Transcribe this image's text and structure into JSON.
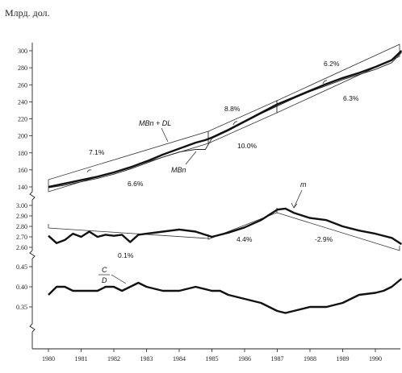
{
  "chart_data": [
    {
      "type": "line",
      "ylabel": "Млрд. дол.",
      "ylim": [
        130,
        310
      ],
      "yticks": [
        140,
        160,
        180,
        200,
        220,
        240,
        260,
        280,
        300
      ],
      "xlim": [
        1980,
        1990.8
      ],
      "series": [
        {
          "name": "MBn + DL",
          "x": [
            1980,
            1980.5,
            1981,
            1981.5,
            1982,
            1982.5,
            1983,
            1983.5,
            1984,
            1984.5,
            1984.8,
            1985,
            1985.5,
            1986,
            1986.5,
            1987,
            1987.5,
            1988,
            1988.5,
            1989,
            1989.5,
            1990,
            1990.5,
            1990.8
          ],
          "values": [
            140,
            144,
            148,
            152,
            157,
            163,
            170,
            178,
            185,
            192,
            195,
            198,
            207,
            217,
            227,
            237,
            245,
            253,
            261,
            268,
            274,
            281,
            289,
            300
          ]
        },
        {
          "name": "MBn",
          "x": [
            1980,
            1980.5,
            1981,
            1981.5,
            1982,
            1982.5,
            1983,
            1983.5,
            1984,
            1984.5,
            1984.8,
            1985,
            1985.5,
            1986,
            1986.5,
            1987,
            1987.5,
            1988,
            1988.5,
            1989,
            1989.5,
            1990,
            1990.5,
            1990.8
          ],
          "values": [
            139,
            142,
            146,
            150,
            155,
            161,
            168,
            175,
            181,
            184,
            184,
            197,
            206,
            216,
            226,
            235,
            244,
            252,
            259,
            266,
            272,
            278,
            286,
            298
          ]
        }
      ],
      "annotations": [
        "7.1%",
        "6.6%",
        "8.8%",
        "10.0%",
        "6.2%",
        "6.3%"
      ]
    },
    {
      "type": "line",
      "ylim": [
        2.58,
        3.05
      ],
      "yticks": [
        2.6,
        2.7,
        2.8,
        2.9,
        3.0
      ],
      "ytick_labels": [
        "2.60",
        "2.70",
        "2.80",
        "2.90",
        "3.00"
      ],
      "series": [
        {
          "name": "m",
          "x": [
            1980,
            1980.25,
            1980.5,
            1980.75,
            1981,
            1981.25,
            1981.5,
            1981.75,
            1982,
            1982.25,
            1982.5,
            1982.75,
            1983,
            1983.5,
            1984,
            1984.5,
            1985,
            1985.5,
            1986,
            1986.5,
            1987,
            1987.25,
            1987.5,
            1988,
            1988.5,
            1989,
            1989.5,
            1990,
            1990.5,
            1990.8
          ],
          "values": [
            2.71,
            2.64,
            2.67,
            2.73,
            2.7,
            2.75,
            2.7,
            2.72,
            2.71,
            2.72,
            2.65,
            2.72,
            2.73,
            2.75,
            2.77,
            2.75,
            2.7,
            2.74,
            2.79,
            2.86,
            2.96,
            2.97,
            2.93,
            2.88,
            2.86,
            2.8,
            2.76,
            2.73,
            2.69,
            2.63
          ]
        }
      ],
      "annotations": [
        "0.1%",
        "4.4%",
        "-2.9%"
      ]
    },
    {
      "type": "line",
      "ylim": [
        0.3,
        0.46
      ],
      "yticks": [
        0.35,
        0.4,
        0.45
      ],
      "ytick_labels": [
        "0.35",
        "0.40",
        "0.45"
      ],
      "series": [
        {
          "name": "C/D",
          "x": [
            1980,
            1980.25,
            1980.5,
            1980.75,
            1981,
            1981.5,
            1981.75,
            1982,
            1982.25,
            1982.5,
            1982.75,
            1983,
            1983.5,
            1983.75,
            1984,
            1984.5,
            1985,
            1985.25,
            1985.5,
            1986,
            1986.5,
            1986.75,
            1987,
            1987.25,
            1987.5,
            1988,
            1988.5,
            1989,
            1989.5,
            1990,
            1990.25,
            1990.5,
            1990.8
          ],
          "values": [
            0.38,
            0.4,
            0.4,
            0.39,
            0.39,
            0.39,
            0.4,
            0.4,
            0.39,
            0.4,
            0.41,
            0.4,
            0.39,
            0.39,
            0.39,
            0.4,
            0.39,
            0.39,
            0.38,
            0.37,
            0.36,
            0.35,
            0.34,
            0.335,
            0.34,
            0.35,
            0.35,
            0.36,
            0.38,
            0.385,
            0.39,
            0.4,
            0.42
          ]
        }
      ],
      "label_numerator": "C",
      "label_denominator": "D"
    }
  ],
  "xaxis": {
    "ticks": [
      1980,
      1981,
      1982,
      1983,
      1984,
      1985,
      1986,
      1987,
      1988,
      1989,
      1990
    ],
    "tick_labels": [
      "1980",
      "1981",
      "1982",
      "1983",
      "1984",
      "1985",
      "1986",
      "1987",
      "1988",
      "1989",
      "1990"
    ]
  }
}
